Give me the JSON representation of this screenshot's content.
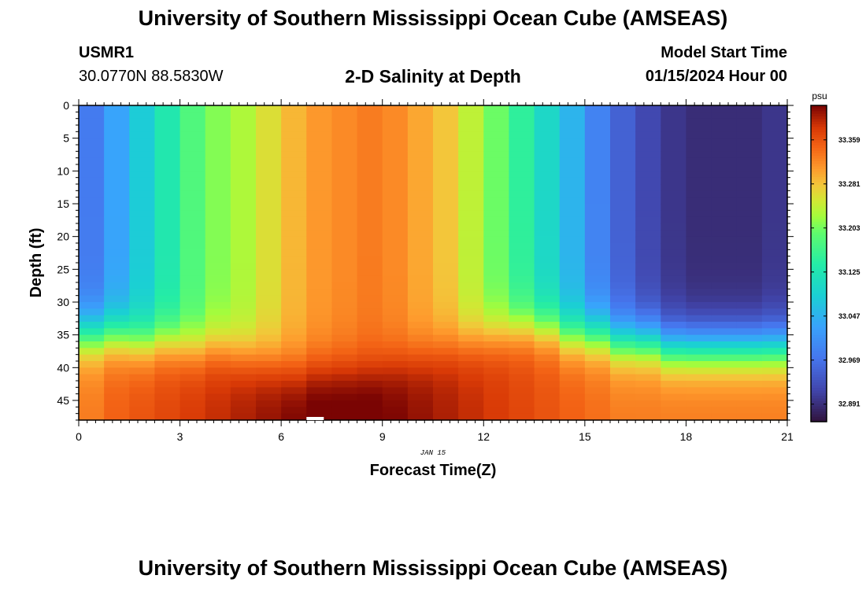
{
  "header": {
    "title": "University of Southern Mississippi Ocean Cube (AMSEAS)",
    "station_id": "USMR1",
    "coords": "30.0770N  88.5830W",
    "plot_title": "2-D Salinity at Depth",
    "start_label": "Model Start Time",
    "start_value": "01/15/2024 Hour 00"
  },
  "footer": {
    "title": "University of Southern Mississippi Ocean Cube (AMSEAS)"
  },
  "chart_data": {
    "type": "heatmap",
    "title": "2-D Salinity at Depth",
    "xlabel": "Forecast Time(Z)",
    "ylabel": "Depth (ft)",
    "x_annotation": "JAN 15",
    "xlim": [
      0,
      21
    ],
    "ylim": [
      0,
      48
    ],
    "xticks": [
      0,
      3,
      6,
      9,
      12,
      15,
      18,
      21
    ],
    "yticks": [
      0,
      5,
      10,
      15,
      20,
      25,
      30,
      35,
      40,
      45
    ],
    "x": [
      0,
      0.75,
      1.5,
      2.25,
      3,
      3.75,
      4.5,
      5.25,
      6,
      6.75,
      7.5,
      8.25,
      9,
      9.75,
      10.5,
      11.25,
      12,
      12.75,
      13.5,
      14.25,
      15,
      15.75,
      16.5,
      17.25,
      18,
      18.75,
      19.5,
      20.25
    ],
    "surface_salinity": [
      32.98,
      33.03,
      33.08,
      33.13,
      33.18,
      33.21,
      33.23,
      33.26,
      33.29,
      33.31,
      33.32,
      33.33,
      33.32,
      33.3,
      33.28,
      33.24,
      33.2,
      33.15,
      33.1,
      33.05,
      32.99,
      32.95,
      32.92,
      32.9,
      32.89,
      32.89,
      32.89,
      32.9
    ],
    "bottom_salinity": [
      33.33,
      33.35,
      33.36,
      33.37,
      33.38,
      33.39,
      33.4,
      33.41,
      33.42,
      33.43,
      33.43,
      33.43,
      33.42,
      33.41,
      33.4,
      33.39,
      33.38,
      33.37,
      33.36,
      33.35,
      33.34,
      33.33,
      33.33,
      33.33,
      33.33,
      33.33,
      33.33,
      33.33
    ],
    "halocline_depth": [
      35,
      35,
      36,
      36,
      37,
      37,
      38,
      39,
      40,
      40,
      40,
      40,
      39,
      38,
      37,
      36,
      35,
      34,
      34,
      35,
      35,
      36,
      36,
      37,
      37,
      37,
      37,
      37
    ],
    "colorbar": {
      "unit": "psu",
      "range": [
        32.86,
        33.42
      ],
      "ticks": [
        32.891,
        32.969,
        33.047,
        33.125,
        33.203,
        33.281,
        33.359
      ]
    }
  }
}
